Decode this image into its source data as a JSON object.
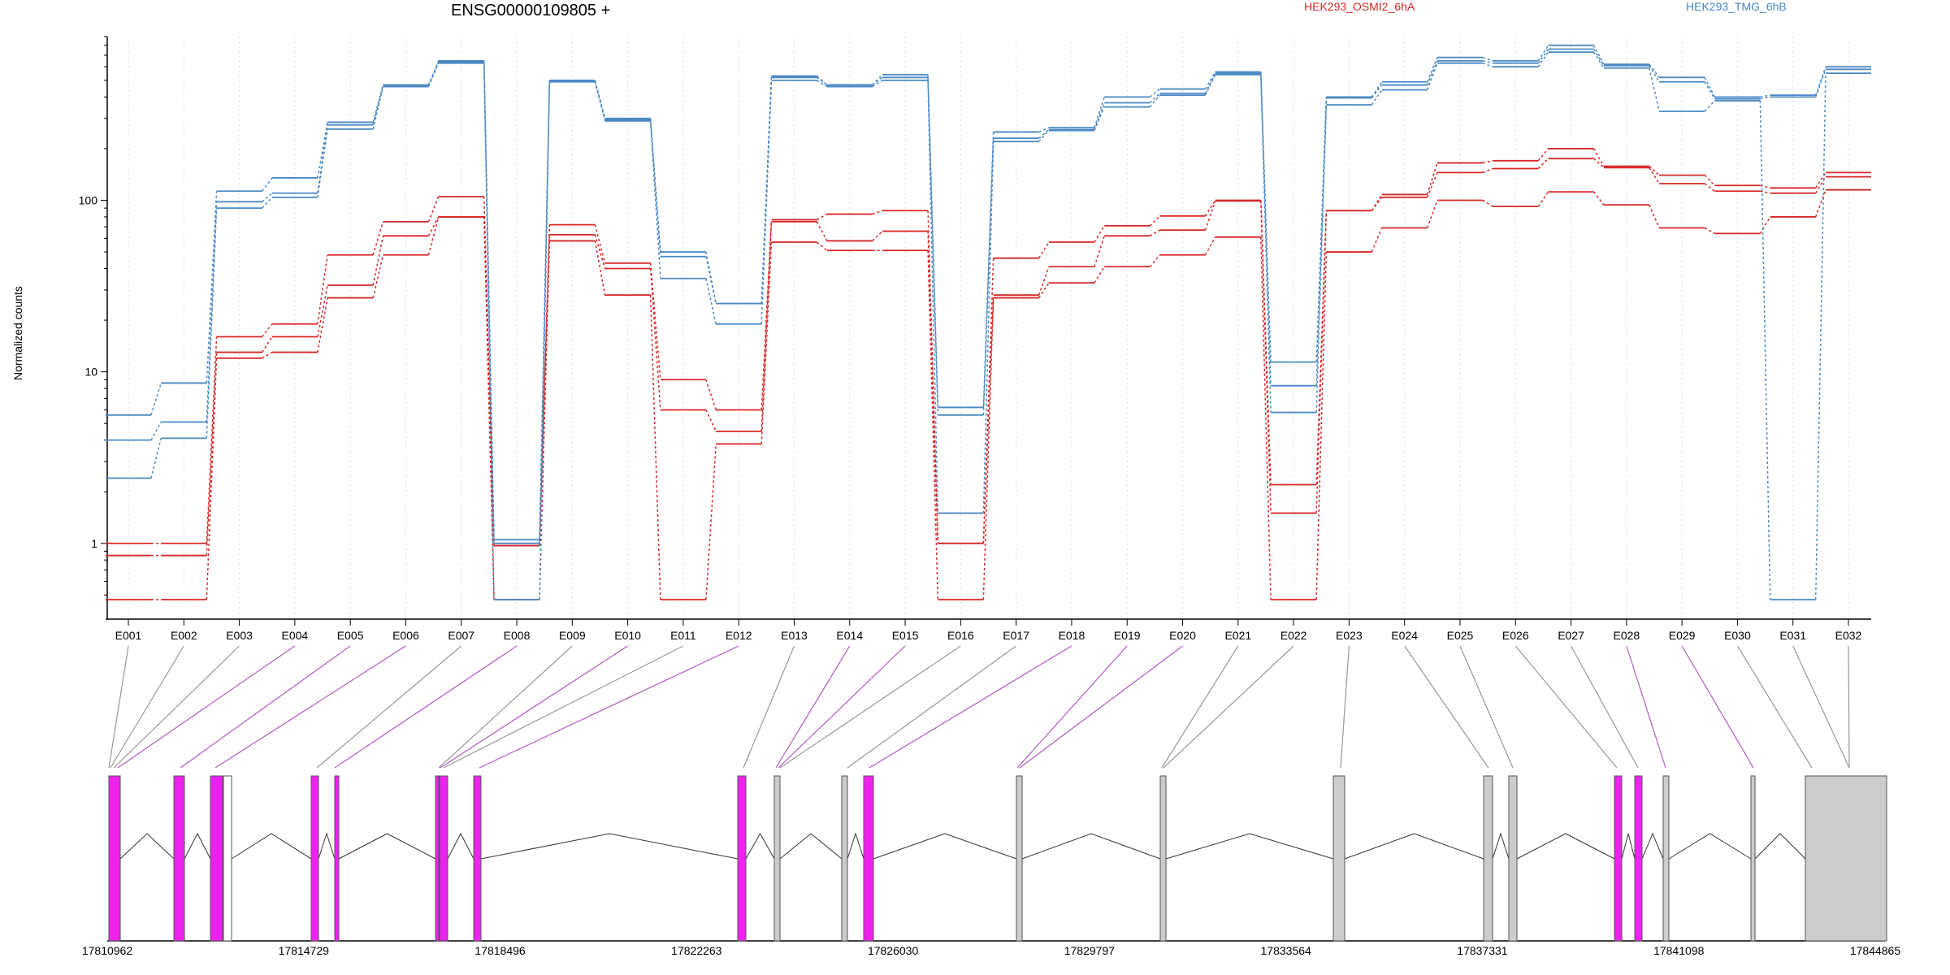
{
  "chart_data": {
    "type": "line",
    "title": "ENSG00000109805 +",
    "ylabel": "Normalized counts",
    "yscale": "log",
    "ylim": [
      0.47,
      900
    ],
    "yticks": [
      "1",
      "10",
      "100"
    ],
    "grid": "vertical dotted at exon centers",
    "legend": "top-right",
    "colors": {
      "HEK293_OSMI2_6hA": "#d62728",
      "HEK293_TMG_6hB": "#4a89c3",
      "exon_highlight": "#ee22ee",
      "exon_default": "#cccccc",
      "exon_white": "#ffffff"
    },
    "categories": [
      "E001",
      "E002",
      "E003",
      "E004",
      "E005",
      "E006",
      "E007",
      "E008",
      "E009",
      "E010",
      "E011",
      "E012",
      "E013",
      "E014",
      "E015",
      "E016",
      "E017",
      "E018",
      "E019",
      "E020",
      "E021",
      "E022",
      "E023",
      "E024",
      "E025",
      "E026",
      "E027",
      "E028",
      "E029",
      "E030",
      "E031",
      "E032"
    ],
    "series": [
      {
        "name": "HEK293_OSMI2_6hA",
        "color": "#d62728",
        "values": [
          1.0,
          1.0,
          16,
          19,
          48,
          75,
          105,
          1.0,
          72,
          43,
          9,
          6,
          77,
          83,
          87,
          1.0,
          46,
          57,
          71,
          81,
          100,
          2.2,
          87,
          108,
          165,
          170,
          200,
          158,
          140,
          122,
          118,
          145
        ]
      },
      {
        "name": "HEK293_OSMI2_6hA",
        "color": "#d62728",
        "values": [
          0.85,
          0.85,
          13,
          16,
          32,
          62,
          80,
          0.97,
          63,
          40,
          6,
          4.5,
          75,
          58,
          66,
          1.0,
          28,
          41,
          62,
          67,
          99,
          1.5,
          87,
          104,
          145,
          153,
          175,
          155,
          125,
          113,
          110,
          137
        ]
      },
      {
        "name": "HEK293_OSMI2_6hA",
        "color": "#d62728",
        "values": [
          0.47,
          0.47,
          12,
          13,
          27,
          48,
          80,
          0.47,
          58,
          28,
          0.47,
          3.8,
          57,
          51,
          51,
          0.47,
          27,
          33,
          41,
          48,
          61,
          0.47,
          50,
          69,
          100,
          92,
          112,
          94,
          69,
          64,
          80,
          115
        ]
      },
      {
        "name": "HEK293_TMG_6hB",
        "color": "#4a89c3",
        "values": [
          5.6,
          8.6,
          113,
          135,
          285,
          470,
          650,
          1.05,
          500,
          300,
          50,
          25,
          530,
          470,
          540,
          6.2,
          250,
          265,
          400,
          445,
          560,
          11.4,
          400,
          490,
          680,
          650,
          800,
          620,
          520,
          400,
          410,
          600
        ]
      },
      {
        "name": "HEK293_TMG_6hB",
        "color": "#4a89c3",
        "values": [
          4.0,
          5.1,
          98,
          110,
          275,
          460,
          640,
          1.0,
          495,
          295,
          47,
          25,
          520,
          470,
          520,
          5.6,
          230,
          258,
          370,
          420,
          550,
          8.3,
          395,
          470,
          650,
          630,
          760,
          610,
          490,
          390,
          400,
          580
        ]
      },
      {
        "name": "HEK293_TMG_6hB",
        "color": "#4a89c3",
        "values": [
          2.4,
          4.1,
          90,
          104,
          260,
          460,
          630,
          0.47,
          490,
          290,
          35,
          19,
          500,
          460,
          500,
          1.5,
          220,
          255,
          350,
          410,
          540,
          5.8,
          360,
          440,
          630,
          600,
          730,
          590,
          330,
          380,
          0.47,
          550
        ]
      }
    ],
    "gene_model": {
      "xlabels": [
        "17810962",
        "17814729",
        "17818496",
        "17822263",
        "17826030",
        "17829797",
        "17833564",
        "17837331",
        "17841098",
        "17844865"
      ]
    }
  }
}
